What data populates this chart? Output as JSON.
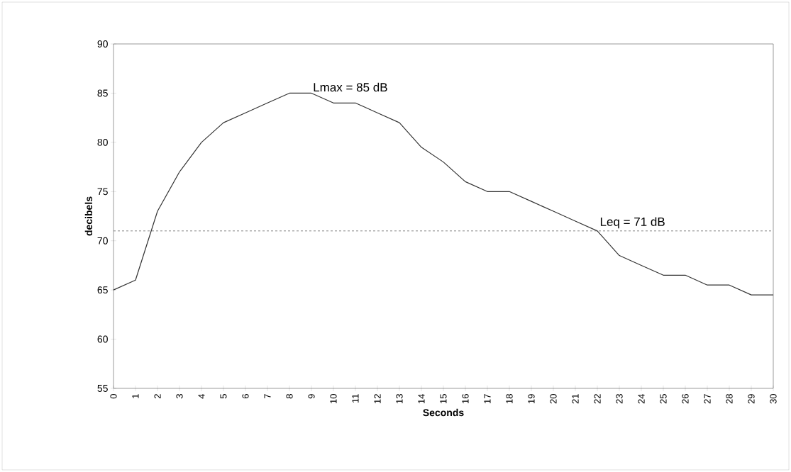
{
  "chart_data": {
    "type": "line",
    "xlabel": "Seconds",
    "ylabel": "decibels",
    "x": [
      0,
      1,
      2,
      3,
      4,
      5,
      6,
      7,
      8,
      9,
      10,
      11,
      12,
      13,
      14,
      15,
      16,
      17,
      18,
      19,
      20,
      21,
      22,
      23,
      24,
      25,
      26,
      27,
      28,
      29,
      30
    ],
    "series": [
      {
        "color": "#333333",
        "values": [
          65,
          66,
          73,
          77,
          80,
          82,
          83,
          84,
          85,
          85,
          84,
          84,
          83,
          82,
          79.5,
          78,
          76,
          75,
          75,
          74,
          73,
          72,
          71,
          68.5,
          67.5,
          66.5,
          66.5,
          65.5,
          65.5,
          64.5,
          64.5
        ]
      }
    ],
    "xlim": [
      0,
      30
    ],
    "xticks": [
      0,
      1,
      2,
      3,
      4,
      5,
      6,
      7,
      8,
      9,
      10,
      11,
      12,
      13,
      14,
      15,
      16,
      17,
      18,
      19,
      20,
      21,
      22,
      23,
      24,
      25,
      26,
      27,
      28,
      29,
      30
    ],
    "ylim": [
      55,
      90
    ],
    "yticks": [
      55,
      60,
      65,
      70,
      75,
      80,
      85,
      90
    ],
    "ref_lines": [
      {
        "axis": "y",
        "value": 71,
        "label": "Leq = 71 dB",
        "color": "#666666",
        "line_style": "dashed"
      }
    ],
    "annotations": [
      {
        "text": "Lmax = 85 dB",
        "x": 9,
        "y": 85
      }
    ],
    "grid": false,
    "marker": "none",
    "line_style": "solid"
  }
}
